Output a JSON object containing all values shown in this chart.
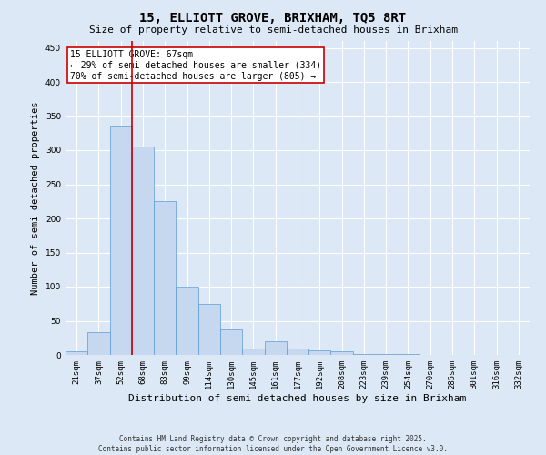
{
  "title": "15, ELLIOTT GROVE, BRIXHAM, TQ5 8RT",
  "subtitle": "Size of property relative to semi-detached houses in Brixham",
  "xlabel": "Distribution of semi-detached houses by size in Brixham",
  "ylabel": "Number of semi-detached properties",
  "categories": [
    "21sqm",
    "37sqm",
    "52sqm",
    "68sqm",
    "83sqm",
    "99sqm",
    "114sqm",
    "130sqm",
    "145sqm",
    "161sqm",
    "177sqm",
    "192sqm",
    "208sqm",
    "223sqm",
    "239sqm",
    "254sqm",
    "270sqm",
    "285sqm",
    "301sqm",
    "316sqm",
    "332sqm"
  ],
  "values": [
    5,
    33,
    335,
    305,
    225,
    100,
    75,
    38,
    10,
    20,
    10,
    7,
    5,
    2,
    1,
    1,
    0,
    0,
    0,
    0,
    0
  ],
  "bar_color": "#c5d8f0",
  "bar_edge_color": "#5b9bd5",
  "marker_line_bin": 3,
  "marker_line_color": "#cc0000",
  "annotation_text": "15 ELLIOTT GROVE: 67sqm\n← 29% of semi-detached houses are smaller (334)\n70% of semi-detached houses are larger (805) →",
  "annotation_box_color": "#ffffff",
  "annotation_border_color": "#cc0000",
  "ylim": [
    0,
    460
  ],
  "yticks": [
    0,
    50,
    100,
    150,
    200,
    250,
    300,
    350,
    400,
    450
  ],
  "background_color": "#dce8f5",
  "grid_color": "#ffffff",
  "footnote": "Contains HM Land Registry data © Crown copyright and database right 2025.\nContains public sector information licensed under the Open Government Licence v3.0.",
  "title_fontsize": 10,
  "subtitle_fontsize": 8,
  "xlabel_fontsize": 8,
  "ylabel_fontsize": 7.5,
  "tick_fontsize": 6.5,
  "annotation_fontsize": 7,
  "footnote_fontsize": 5.5
}
